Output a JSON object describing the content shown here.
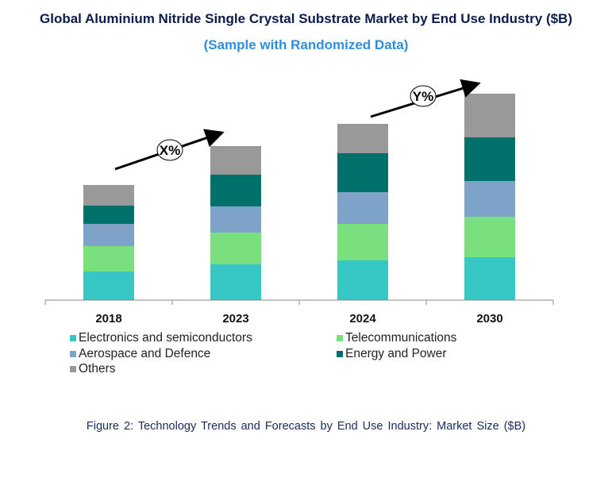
{
  "chart_data": {
    "type": "bar",
    "stacked": true,
    "title": "Global Aluminium Nitride Single Crystal Substrate Market by End Use Industry ($B)",
    "subtitle": "(Sample with Randomized Data)",
    "caption": "Figure 2: Technology  Trends  and Forecasts by End Use Industry:  Market Size ($B)",
    "categories": [
      "2018",
      "2023",
      "2024",
      "2030"
    ],
    "series": [
      {
        "name": "Electronics and semiconductors",
        "color": "#36c6c4",
        "values": [
          3.6,
          4.5,
          5.0,
          5.4
        ]
      },
      {
        "name": "Telecommunications",
        "color": "#7ae07e",
        "values": [
          3.2,
          4.0,
          4.6,
          5.1
        ]
      },
      {
        "name": "Aerospace and Defence",
        "color": "#7ea3c8",
        "values": [
          2.8,
          3.3,
          4.0,
          4.5
        ]
      },
      {
        "name": "Energy and Power",
        "color": "#00716a",
        "values": [
          2.3,
          4.0,
          4.9,
          5.5
        ]
      },
      {
        "name": "Others",
        "color": "#999999",
        "values": [
          2.6,
          3.6,
          3.7,
          5.5
        ]
      }
    ],
    "annotations": [
      {
        "text": "X%",
        "from": "2018",
        "to": "2023"
      },
      {
        "text": "Y%",
        "from": "2024",
        "to": "2030"
      }
    ],
    "y_axis_shown": false,
    "grid": false,
    "legend_position": "bottom"
  }
}
